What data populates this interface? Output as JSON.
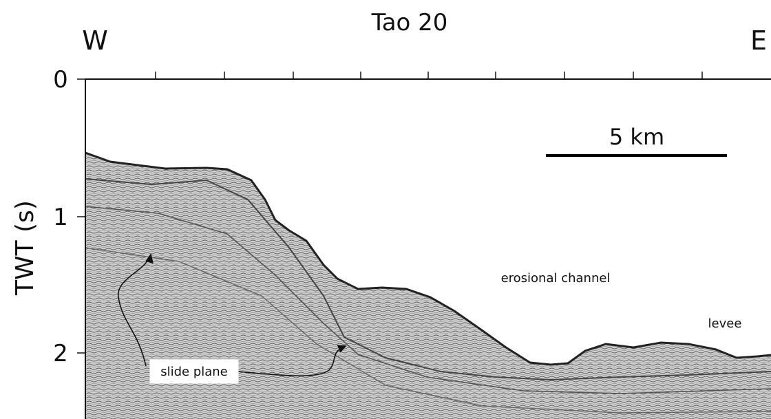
{
  "title": "Tao 20",
  "west_label": "W",
  "east_label": "E",
  "y_axis": {
    "label": "TWT (s)",
    "ticks": [
      "0",
      "1",
      "2"
    ]
  },
  "scale_bar": {
    "label": "5 km"
  },
  "annotations": {
    "erosional_channel": "erosional channel",
    "levee": "levee",
    "slide_plane": "slide plane"
  },
  "colors": {
    "background": "#ffffff",
    "ink": "#111111",
    "seismic_fill": "#c9c9c9"
  }
}
